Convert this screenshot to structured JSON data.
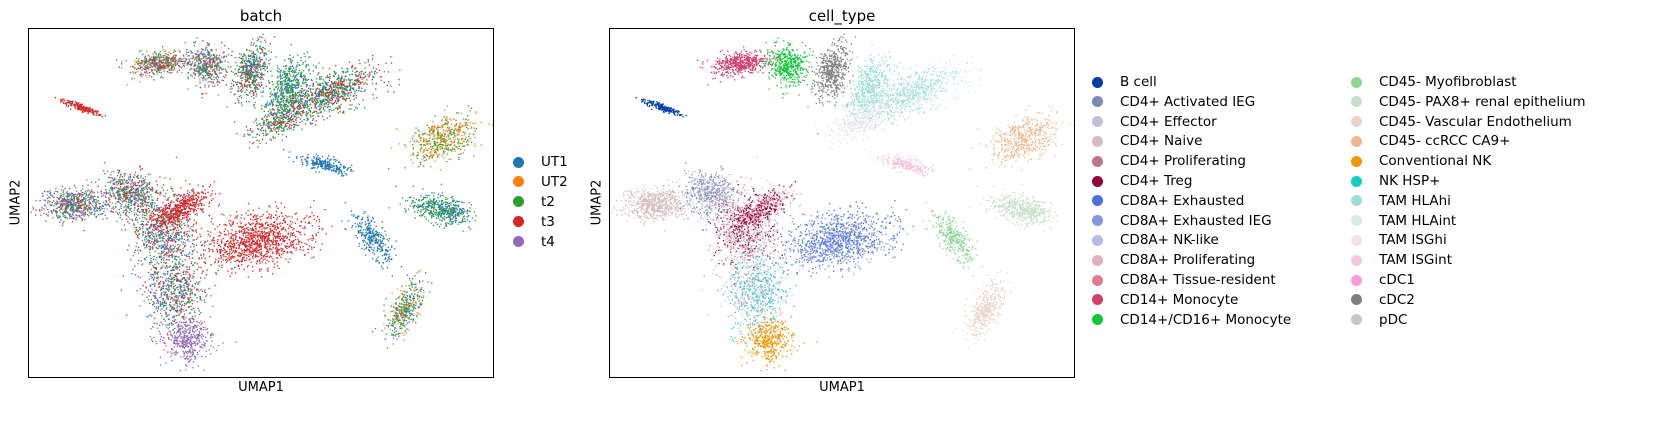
{
  "chart_data": [
    {
      "type": "scatter",
      "title": "batch",
      "xlabel": "UMAP1",
      "ylabel": "UMAP2",
      "grid": false,
      "legend_position": "right",
      "series": [
        {
          "name": "UT1",
          "color": "#1f77b4"
        },
        {
          "name": "UT2",
          "color": "#ff7f0e"
        },
        {
          "name": "t2",
          "color": "#2ca02c"
        },
        {
          "name": "t3",
          "color": "#d62728"
        },
        {
          "name": "t4",
          "color": "#9467bd"
        }
      ]
    },
    {
      "type": "scatter",
      "title": "cell_type",
      "xlabel": "UMAP1",
      "ylabel": "UMAP2",
      "grid": false,
      "legend_position": "right",
      "series": [
        {
          "name": "B cell",
          "color": "#023fa5"
        },
        {
          "name": "CD4+ Activated IEG",
          "color": "#7d87b9"
        },
        {
          "name": "CD4+ Effector",
          "color": "#bec1d4"
        },
        {
          "name": "CD4+ Naive",
          "color": "#d6bcc0"
        },
        {
          "name": "CD4+ Proliferating",
          "color": "#bb7784"
        },
        {
          "name": "CD4+ Treg",
          "color": "#8e063b"
        },
        {
          "name": "CD8A+ Exhausted",
          "color": "#4a6fe3"
        },
        {
          "name": "CD8A+ Exhausted IEG",
          "color": "#8595e1"
        },
        {
          "name": "CD8A+ NK-like",
          "color": "#b5bbe3"
        },
        {
          "name": "CD8A+ Proliferating",
          "color": "#e6afb9"
        },
        {
          "name": "CD8A+ Tissue-resident",
          "color": "#e07b91"
        },
        {
          "name": "CD14+ Monocyte",
          "color": "#d33f6a"
        },
        {
          "name": "CD14+/CD16+ Monocyte",
          "color": "#11c638"
        },
        {
          "name": "CD45- Myofibroblast",
          "color": "#8dd593"
        },
        {
          "name": "CD45- PAX8+ renal epithelium",
          "color": "#c6dec7"
        },
        {
          "name": "CD45- Vascular Endothelium",
          "color": "#ead3c6"
        },
        {
          "name": "CD45- ccRCC CA9+",
          "color": "#f0b98d"
        },
        {
          "name": "Conventional NK",
          "color": "#ef9708"
        },
        {
          "name": "NK HSP+",
          "color": "#0fcfc0"
        },
        {
          "name": "TAM HLAhi",
          "color": "#9cded6"
        },
        {
          "name": "TAM HLAint",
          "color": "#d5eae7"
        },
        {
          "name": "TAM ISGhi",
          "color": "#f3e1eb"
        },
        {
          "name": "TAM ISGint",
          "color": "#f6c4e1"
        },
        {
          "name": "cDC1",
          "color": "#f79cd4"
        },
        {
          "name": "cDC2",
          "color": "#7f7f7f"
        },
        {
          "name": "pDC",
          "color": "#c7c7c7"
        }
      ]
    }
  ]
}
